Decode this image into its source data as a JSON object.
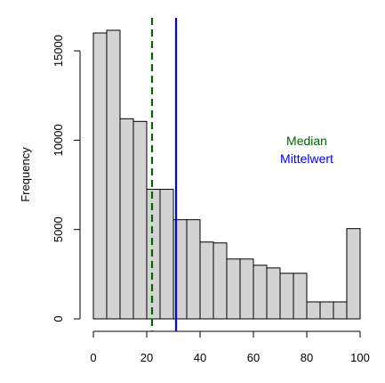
{
  "chart_data": {
    "type": "bar",
    "title": "",
    "xlabel": "",
    "ylabel": "Frequency",
    "bin_edges": [
      0,
      5,
      10,
      15,
      20,
      25,
      30,
      35,
      40,
      45,
      50,
      55,
      60,
      65,
      70,
      75,
      80,
      85,
      90,
      95,
      100
    ],
    "values": [
      16000,
      16150,
      11200,
      11050,
      7250,
      7250,
      5550,
      5550,
      4300,
      4250,
      3350,
      3350,
      3000,
      2850,
      2550,
      2550,
      950,
      950,
      950,
      5050
    ],
    "xlim": [
      0,
      100
    ],
    "ylim": [
      0,
      16150
    ],
    "x_ticks": [
      0,
      20,
      40,
      60,
      80,
      100
    ],
    "y_ticks": [
      0,
      5000,
      10000,
      15000
    ],
    "x_tick_labels": [
      "0",
      "20",
      "40",
      "60",
      "80",
      "100"
    ],
    "y_tick_labels": [
      "0",
      "5000",
      "10000",
      "15000"
    ],
    "bar_fill": "#d3d3d3",
    "bar_stroke": "#000000",
    "grid": false,
    "reference_lines": [
      {
        "label": "Median",
        "x": 22,
        "color": "#006400",
        "style": "dashed"
      },
      {
        "label": "Mittelwert",
        "x": 31,
        "color": "#0000ff",
        "style": "solid"
      }
    ],
    "legend_position": "right"
  }
}
